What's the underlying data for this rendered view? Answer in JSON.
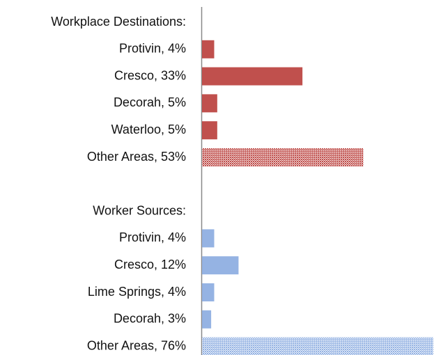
{
  "chart_data": {
    "type": "bar",
    "orientation": "horizontal",
    "xlim": [
      0,
      76
    ],
    "groups": [
      {
        "title": "Workplace Destinations:",
        "color": "#c0504d",
        "categories": [
          "Protivin, 4%",
          "Cresco, 33%",
          "Decorah, 5%",
          "Waterloo, 5%",
          "Other Areas, 53%"
        ],
        "values": [
          4,
          33,
          5,
          5,
          53
        ],
        "hatched": [
          false,
          false,
          false,
          false,
          true
        ]
      },
      {
        "title": "Worker Sources:",
        "color": "#95b3e3",
        "categories": [
          "Protivin, 4%",
          "Cresco, 12%",
          "Lime Springs, 4%",
          "Decorah, 3%",
          "Other Areas, 76%"
        ],
        "values": [
          4,
          12,
          4,
          3,
          76
        ],
        "hatched": [
          false,
          false,
          false,
          false,
          true
        ]
      }
    ]
  }
}
